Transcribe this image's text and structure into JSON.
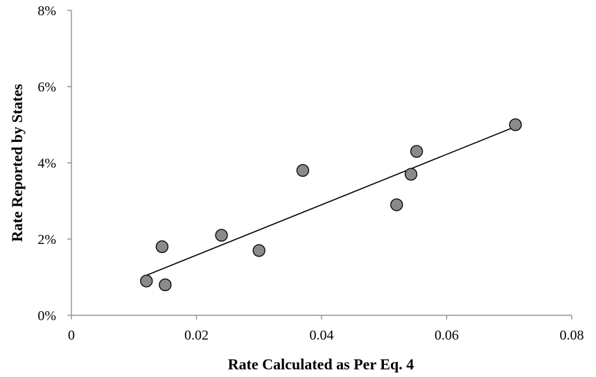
{
  "chart_data": {
    "type": "scatter",
    "title": "",
    "xlabel": "Rate Calculated as Per Eq. 4",
    "ylabel": "Rate Reported by States",
    "xlim": [
      0,
      0.08
    ],
    "ylim": [
      0,
      8
    ],
    "x_ticks": [
      0,
      0.02,
      0.04,
      0.06,
      0.08
    ],
    "x_tick_labels": [
      "0",
      "0.02",
      "0.04",
      "0.06",
      "0.08"
    ],
    "y_ticks": [
      0,
      2,
      4,
      6,
      8
    ],
    "y_tick_labels": [
      "0%",
      "2%",
      "4%",
      "6%",
      "8%"
    ],
    "y_unit": "%",
    "grid": false,
    "legend": "none",
    "points": [
      {
        "x": 0.012,
        "y": 0.9
      },
      {
        "x": 0.0145,
        "y": 1.8
      },
      {
        "x": 0.015,
        "y": 0.8
      },
      {
        "x": 0.024,
        "y": 2.1
      },
      {
        "x": 0.03,
        "y": 1.7
      },
      {
        "x": 0.037,
        "y": 3.8
      },
      {
        "x": 0.052,
        "y": 2.9
      },
      {
        "x": 0.0543,
        "y": 3.7
      },
      {
        "x": 0.0552,
        "y": 4.3
      },
      {
        "x": 0.071,
        "y": 5.0
      }
    ],
    "trendline": {
      "type": "linear",
      "start": {
        "x": 0.012,
        "y": 1.05
      },
      "end": {
        "x": 0.071,
        "y": 4.95
      }
    },
    "colors": {
      "marker_fill": "#8a8a8a",
      "marker_stroke": "#000000",
      "trendline": "#000000",
      "axis": "#7f7f7f"
    }
  }
}
